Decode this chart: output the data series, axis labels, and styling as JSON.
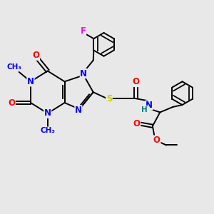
{
  "bg_color": "#e8e8e8",
  "bond_color": "#000000",
  "bond_width": 1.4,
  "atom_colors": {
    "N": "#0000ff",
    "O": "#ff0000",
    "S": "#cccc00",
    "F": "#ff00ff",
    "H": "#008080",
    "C": "#000000"
  },
  "font_size": 8.5
}
